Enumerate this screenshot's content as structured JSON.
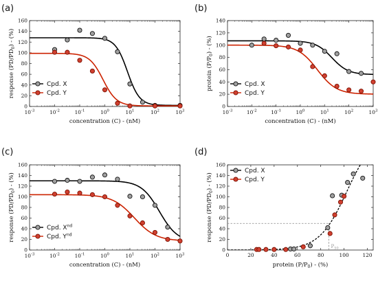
{
  "chart_data": [
    {
      "panel": "(a)",
      "type": "scatter",
      "xscale": "log",
      "xlabel": "concentration (C) - (nM)",
      "ylabel": "response (PD/PD₀) - (%)",
      "xlim": [
        0.001,
        1000
      ],
      "ylim": [
        0,
        160
      ],
      "xticks": [
        0.001,
        0.01,
        0.1,
        1,
        10,
        100,
        1000
      ],
      "xtick_labels": [
        "10-3",
        "10-2",
        "10-1",
        "100",
        "101",
        "102",
        "103"
      ],
      "yticks": [
        0,
        20,
        40,
        60,
        80,
        100,
        120,
        140,
        160
      ],
      "legend_position": "bottom-left",
      "series": [
        {
          "name": "Cpd. X",
          "color": "#000000",
          "fill": "#a0a0a0",
          "points": [
            [
              0.01,
              106
            ],
            [
              0.032,
              124
            ],
            [
              0.1,
              142
            ],
            [
              0.32,
              136
            ],
            [
              1,
              127
            ],
            [
              3.2,
              102
            ],
            [
              10,
              42
            ],
            [
              32,
              8
            ],
            [
              100,
              2
            ],
            [
              1000,
              2
            ]
          ],
          "curve": {
            "top": 128,
            "bottom": 2,
            "ec50": 8,
            "hill": 1.8
          }
        },
        {
          "name": "Cpd. Y",
          "color": "#cc2200",
          "fill": "#d04030",
          "points": [
            [
              0.01,
              101
            ],
            [
              0.032,
              101
            ],
            [
              0.1,
              86
            ],
            [
              0.32,
              66
            ],
            [
              1,
              31
            ],
            [
              3.2,
              6
            ],
            [
              10,
              1
            ],
            [
              100,
              1
            ],
            [
              1000,
              1
            ]
          ],
          "curve": {
            "top": 99,
            "bottom": 1,
            "ec50": 0.85,
            "hill": 1.6
          }
        }
      ]
    },
    {
      "panel": "(b)",
      "type": "scatter",
      "xscale": "log",
      "xlabel": "concentration (C) - (nM)",
      "ylabel": "protein (P/P₀) - (%)",
      "xlim": [
        0.001,
        1000
      ],
      "ylim": [
        0,
        140
      ],
      "xticks": [
        0.001,
        0.01,
        0.1,
        1,
        10,
        100,
        1000
      ],
      "xtick_labels": [
        "10-3",
        "10-2",
        "10-1",
        "100",
        "101",
        "102",
        "103"
      ],
      "yticks": [
        0,
        20,
        40,
        60,
        80,
        100,
        120,
        140
      ],
      "legend_position": "bottom-left",
      "series": [
        {
          "name": "Cpd. X",
          "color": "#000000",
          "fill": "#a0a0a0",
          "points": [
            [
              0.01,
              100
            ],
            [
              0.032,
              110
            ],
            [
              0.1,
              108
            ],
            [
              0.32,
              116
            ],
            [
              1,
              103
            ],
            [
              3.2,
              100
            ],
            [
              10,
              90
            ],
            [
              32,
              86
            ],
            [
              100,
              57
            ],
            [
              320,
              54
            ]
          ],
          "curve": {
            "top": 107,
            "bottom": 52,
            "ec50": 20,
            "hill": 1.3
          }
        },
        {
          "name": "Cpd. Y",
          "color": "#cc2200",
          "fill": "#d04030",
          "points": [
            [
              0.032,
              103
            ],
            [
              0.1,
              99
            ],
            [
              0.32,
              97
            ],
            [
              1,
              92
            ],
            [
              3.2,
              65
            ],
            [
              10,
              50
            ],
            [
              32,
              33
            ],
            [
              100,
              27
            ],
            [
              320,
              25
            ],
            [
              1000,
              40
            ]
          ],
          "curve": {
            "top": 100,
            "bottom": 20,
            "ec50": 5,
            "hill": 1.1
          }
        }
      ]
    },
    {
      "panel": "(c)",
      "type": "scatter",
      "xscale": "log",
      "xlabel": "concentration (C) - (nM)",
      "ylabel": "response (PD/PD₀) - (%)",
      "xlim": [
        0.001,
        1000
      ],
      "ylim": [
        0,
        160
      ],
      "xticks": [
        0.001,
        0.01,
        0.1,
        1,
        10,
        100,
        1000
      ],
      "xtick_labels": [
        "10-3",
        "10-2",
        "10-1",
        "100",
        "101",
        "102",
        "103"
      ],
      "yticks": [
        0,
        20,
        40,
        60,
        80,
        100,
        120,
        140,
        160
      ],
      "legend_position": "bottom-left",
      "series": [
        {
          "name": "Cpd. Xnd",
          "color": "#000000",
          "fill": "#a0a0a0",
          "points": [
            [
              0.01,
              129
            ],
            [
              0.032,
              131
            ],
            [
              0.1,
              129
            ],
            [
              0.32,
              137
            ],
            [
              1,
              141
            ],
            [
              3.2,
              133
            ],
            [
              10,
              101
            ],
            [
              32,
              100
            ],
            [
              100,
              84
            ],
            [
              320,
              43
            ]
          ],
          "curve": {
            "top": 130,
            "bottom": 15,
            "ec50": 150,
            "hill": 1.2
          }
        },
        {
          "name": "Cpd. Ynd",
          "color": "#cc2200",
          "fill": "#d04030",
          "points": [
            [
              0.01,
              105
            ],
            [
              0.032,
              109
            ],
            [
              0.1,
              107
            ],
            [
              0.32,
              104
            ],
            [
              1,
              100
            ],
            [
              3.2,
              84
            ],
            [
              10,
              64
            ],
            [
              32,
              51
            ],
            [
              100,
              33
            ],
            [
              320,
              20
            ],
            [
              1000,
              17
            ]
          ],
          "curve": {
            "top": 104,
            "bottom": 17,
            "ec50": 15,
            "hill": 1.0
          }
        }
      ]
    },
    {
      "panel": "(d)",
      "type": "scatter",
      "xscale": "linear",
      "xlabel": "protein (P/P₀) - (%)",
      "ylabel": "response (PD/PD₀) - (%)",
      "xlim": [
        0,
        125
      ],
      "ylim": [
        0,
        160
      ],
      "xticks": [
        0,
        20,
        40,
        60,
        80,
        100,
        120
      ],
      "yticks": [
        0,
        20,
        40,
        60,
        80,
        100,
        120,
        140,
        160
      ],
      "legend_position": "top-left",
      "annotation": {
        "text": "P50",
        "x": 87,
        "y": 50
      },
      "series": [
        {
          "name": "Cpd. X",
          "color": "#000000",
          "fill": "#a0a0a0",
          "points": [
            [
              54,
              2
            ],
            [
              57,
              2
            ],
            [
              71,
              8
            ],
            [
              86,
              42
            ],
            [
              90,
              102
            ],
            [
              98,
              103
            ],
            [
              103,
              127
            ],
            [
              108,
              143
            ],
            [
              116,
              135
            ]
          ]
        },
        {
          "name": "Cpd. Y",
          "color": "#cc2200",
          "fill": "#d04030",
          "points": [
            [
              25,
              1
            ],
            [
              27,
              1
            ],
            [
              33,
              1
            ],
            [
              40,
              1
            ],
            [
              50,
              1
            ],
            [
              65,
              6
            ],
            [
              88,
              31
            ],
            [
              92,
              66
            ],
            [
              97,
              90
            ],
            [
              100,
              101
            ]
          ]
        }
      ],
      "fit_curve": {
        "style": "dashed",
        "color": "#000000",
        "x0": 88,
        "y0": 50,
        "k": 0.085,
        "top": 220
      }
    }
  ]
}
